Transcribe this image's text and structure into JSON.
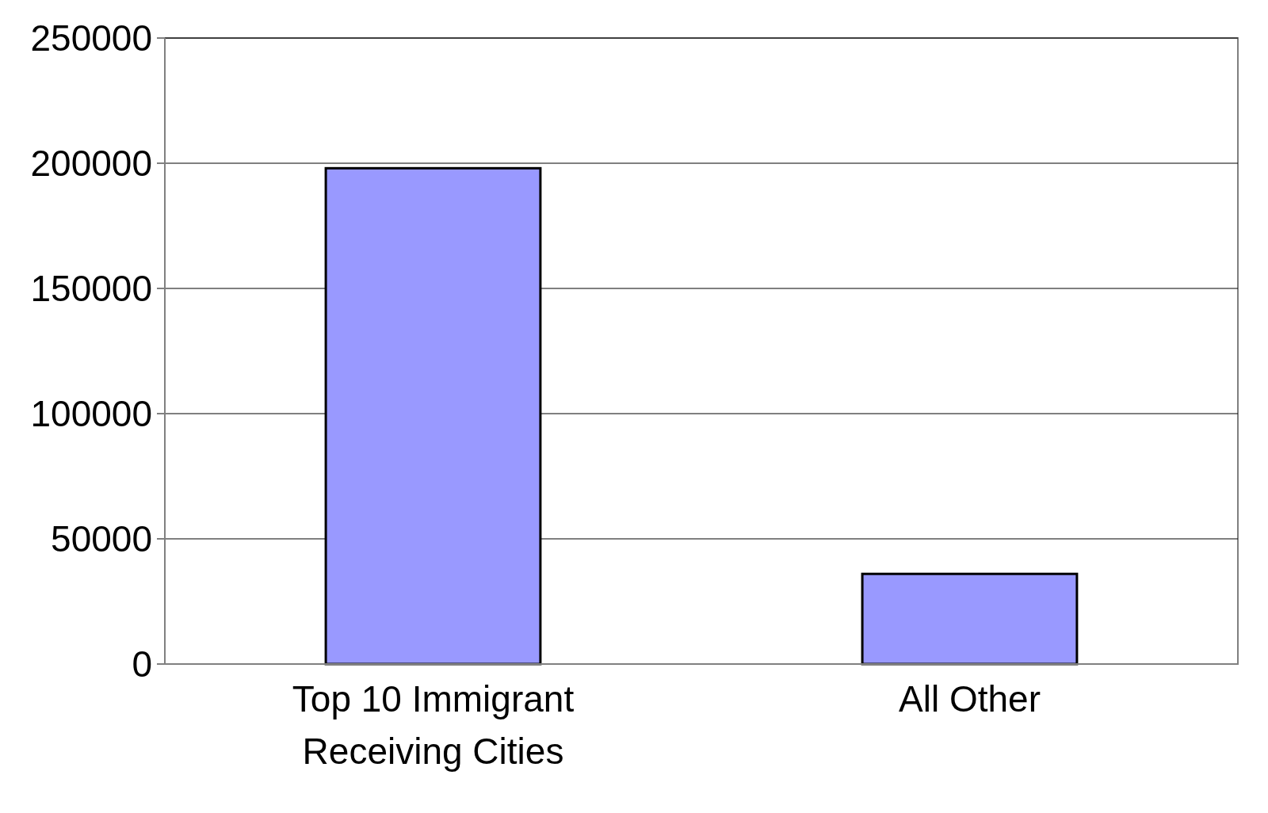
{
  "chart_data": {
    "type": "bar",
    "categories": [
      "Top 10 Immigrant Receiving Cities",
      "All Other"
    ],
    "values": [
      198000,
      36000
    ],
    "color": "#9999ff",
    "ylim": [
      0,
      250000
    ],
    "yticks": [
      0,
      50000,
      100000,
      150000,
      200000,
      250000
    ],
    "grid": "y"
  }
}
